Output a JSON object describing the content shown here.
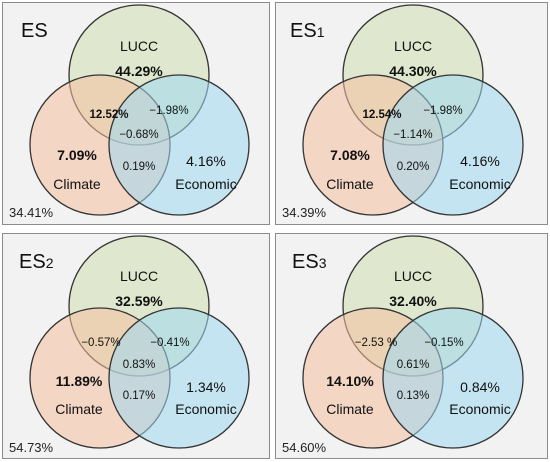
{
  "colors": {
    "lucc": "#cfe0b0",
    "climate": "#f5bfa0",
    "economic": "#9fd8f0",
    "panel_bg": "#f2f2f2"
  },
  "panels": [
    {
      "title": "ES",
      "title_sub": "",
      "lucc_label": "LUCC",
      "climate_label": "Climate",
      "economic_label": "Economic",
      "lucc_only": "44.29%",
      "climate_only": "7.09%",
      "economic_only": "4.16%",
      "lucc_climate": "12.52%",
      "lucc_economic": "−1.98%",
      "climate_economic": "0.19%",
      "all_three": "−0.68%",
      "residual": "34.41%"
    },
    {
      "title": "ES",
      "title_sub": "1",
      "lucc_label": "LUCC",
      "climate_label": "Climate",
      "economic_label": "Economic",
      "lucc_only": "44.30%",
      "climate_only": "7.08%",
      "economic_only": "4.16%",
      "lucc_climate": "12.54%",
      "lucc_economic": "−1.98%",
      "climate_economic": "0.20%",
      "all_three": "−1.14%",
      "residual": "34.39%"
    },
    {
      "title": "ES",
      "title_sub": "2",
      "lucc_label": "LUCC",
      "climate_label": "Climate",
      "economic_label": "Economic",
      "lucc_only": "32.59%",
      "climate_only": "11.89%",
      "economic_only": "1.34%",
      "lucc_climate": "−0.57%",
      "lucc_economic": "−0.41%",
      "climate_economic": "0.17%",
      "all_three": "0.83%",
      "residual": "54.73%"
    },
    {
      "title": "ES",
      "title_sub": "3",
      "lucc_label": "LUCC",
      "climate_label": "Climate",
      "economic_label": "Economic",
      "lucc_only": "32.40%",
      "climate_only": "14.10%",
      "economic_only": "0.84%",
      "lucc_climate": "−2.53 %",
      "lucc_economic": "−0.15%",
      "climate_economic": "0.13%",
      "all_three": "0.61%",
      "residual": "54.60%"
    }
  ]
}
